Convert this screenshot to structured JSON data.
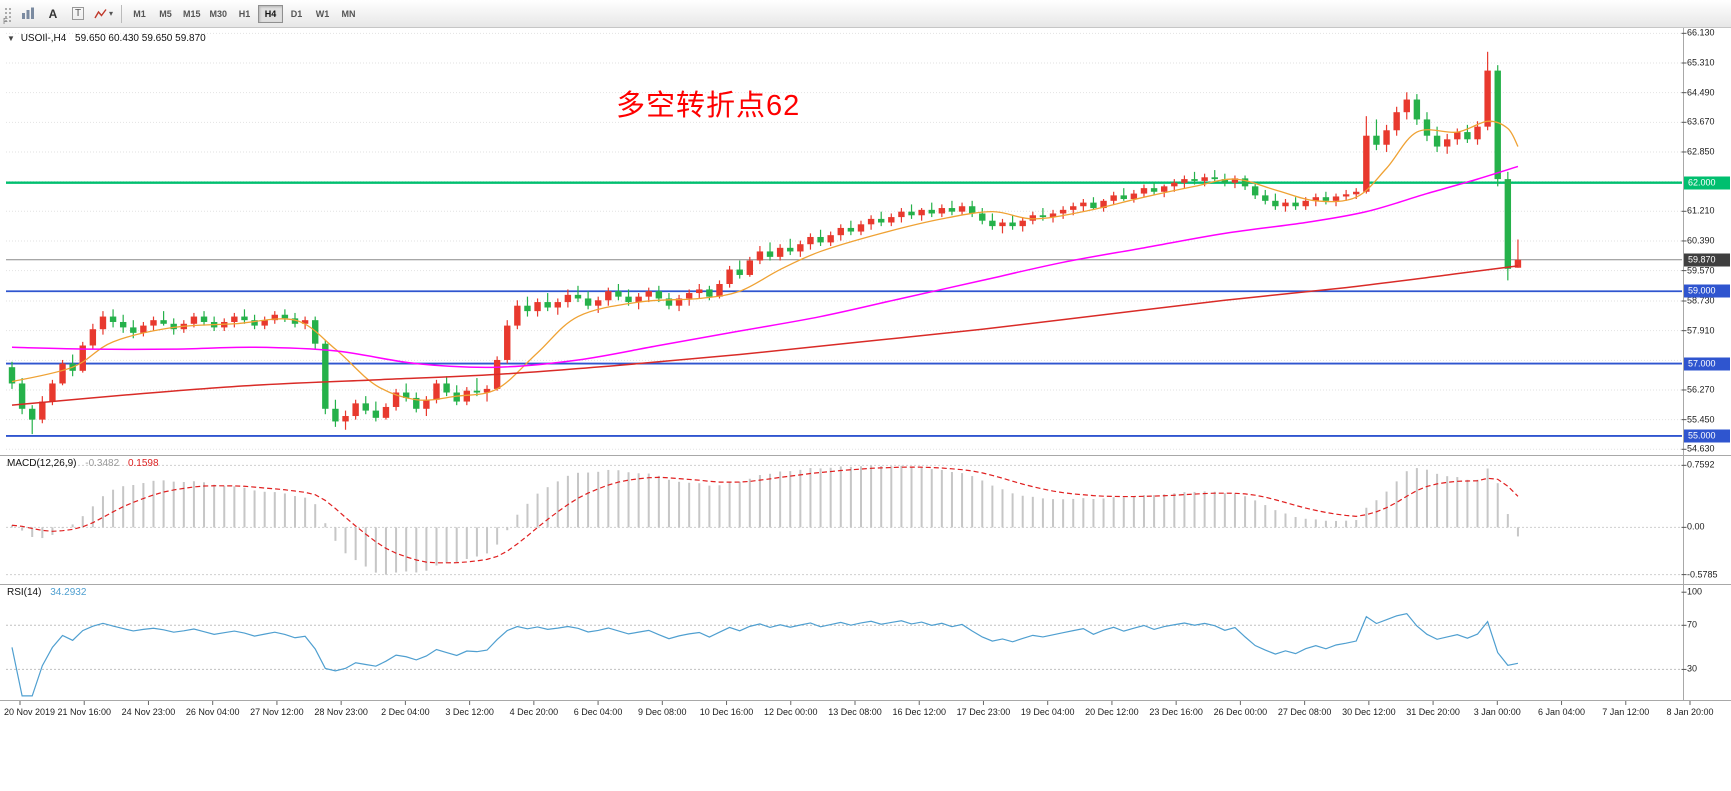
{
  "toolbar": {
    "timeframes": [
      "M1",
      "M5",
      "M15",
      "M30",
      "H1",
      "H4",
      "D1",
      "W1",
      "MN"
    ],
    "active_timeframe": "H4",
    "a_label": "A",
    "t_label": "T",
    "caret": "▾",
    "f_label": "F"
  },
  "chart": {
    "marker": "▼",
    "title_symbol": "USOIl-,H4",
    "title_ohlc": "59.650 60.430 59.650 59.870",
    "annotation": {
      "text": "多空转折点62",
      "color": "#fe0000"
    }
  },
  "chart_data": {
    "type": "candlestick",
    "symbol": "USOIl-",
    "timeframe": "H4",
    "last_ohlc": {
      "open": "59.650",
      "high": "60.430",
      "low": "59.650",
      "close": "59.870"
    },
    "colors": {
      "bull": "#e8392e",
      "bear": "#25b14a",
      "macd_hist": "#c6c6c6",
      "macd_signal": "#e02020",
      "rsi": "#4f9fd0",
      "grid": "#e2e2e2"
    },
    "price_axis": {
      "view_max": 66.25,
      "view_min": 54.5,
      "gridlines": [
        66.13,
        65.31,
        64.49,
        63.67,
        62.85,
        62.03,
        61.21,
        60.39,
        59.57,
        58.73,
        57.91,
        57.09,
        56.27,
        55.45,
        54.63
      ],
      "labels": [
        {
          "text": "66.130",
          "value": 66.13
        },
        {
          "text": "65.310",
          "value": 65.31
        },
        {
          "text": "64.490",
          "value": 64.49
        },
        {
          "text": "63.670",
          "value": 63.67
        },
        {
          "text": "62.850",
          "value": 62.85
        },
        {
          "text": "61.210",
          "value": 61.21
        },
        {
          "text": "60.390",
          "value": 60.39
        },
        {
          "text": "59.570",
          "value": 59.57
        },
        {
          "text": "58.730",
          "value": 58.73
        },
        {
          "text": "57.910",
          "value": 57.91
        },
        {
          "text": "56.270",
          "value": 56.27
        },
        {
          "text": "55.450",
          "value": 55.45
        },
        {
          "text": "54.630",
          "value": 54.63
        }
      ]
    },
    "current_price": {
      "text": "59.870",
      "value": 59.87,
      "badge_color": "#3f3f3f"
    },
    "hlines": [
      {
        "value": 62.0,
        "label": "62.000",
        "color": "#00bf6f",
        "width": 2.4
      },
      {
        "value": 59.0,
        "label": "59.000",
        "color": "#2f55cf",
        "width": 1.8
      },
      {
        "value": 57.0,
        "label": "57.000",
        "color": "#2f55cf",
        "width": 1.8
      },
      {
        "value": 55.0,
        "label": "55.000",
        "color": "#2f55cf",
        "width": 1.8
      }
    ],
    "candles": [
      [
        56.9,
        57.05,
        56.3,
        56.45
      ],
      [
        56.45,
        56.6,
        55.6,
        55.75
      ],
      [
        55.75,
        55.85,
        55.05,
        55.45
      ],
      [
        55.45,
        56.1,
        55.35,
        55.95
      ],
      [
        55.95,
        56.55,
        55.85,
        56.45
      ],
      [
        56.45,
        57.1,
        56.4,
        57.0
      ],
      [
        57.0,
        57.25,
        56.65,
        56.8
      ],
      [
        56.8,
        57.6,
        56.75,
        57.5
      ],
      [
        57.5,
        58.1,
        57.4,
        57.95
      ],
      [
        57.95,
        58.45,
        57.8,
        58.3
      ],
      [
        58.3,
        58.5,
        58.0,
        58.15
      ],
      [
        58.15,
        58.35,
        57.85,
        58.0
      ],
      [
        58.0,
        58.2,
        57.7,
        57.85
      ],
      [
        57.85,
        58.15,
        57.75,
        58.05
      ],
      [
        58.05,
        58.3,
        57.9,
        58.2
      ],
      [
        58.2,
        58.45,
        58.05,
        58.1
      ],
      [
        58.1,
        58.25,
        57.8,
        57.95
      ],
      [
        57.95,
        58.2,
        57.85,
        58.1
      ],
      [
        58.1,
        58.4,
        58.0,
        58.3
      ],
      [
        58.3,
        58.45,
        58.05,
        58.15
      ],
      [
        58.15,
        58.3,
        57.9,
        58.0
      ],
      [
        58.0,
        58.25,
        57.9,
        58.15
      ],
      [
        58.15,
        58.4,
        58.0,
        58.3
      ],
      [
        58.3,
        58.5,
        58.1,
        58.2
      ],
      [
        58.2,
        58.35,
        57.95,
        58.05
      ],
      [
        58.05,
        58.3,
        57.95,
        58.2
      ],
      [
        58.2,
        58.45,
        58.1,
        58.35
      ],
      [
        58.35,
        58.5,
        58.15,
        58.25
      ],
      [
        58.25,
        58.4,
        58.0,
        58.1
      ],
      [
        58.1,
        58.3,
        57.95,
        58.2
      ],
      [
        58.2,
        58.3,
        57.4,
        57.55
      ],
      [
        57.55,
        57.65,
        55.6,
        55.75
      ],
      [
        55.75,
        56.0,
        55.25,
        55.4
      ],
      [
        55.4,
        55.7,
        55.17,
        55.55
      ],
      [
        55.55,
        56.0,
        55.45,
        55.9
      ],
      [
        55.9,
        56.1,
        55.6,
        55.7
      ],
      [
        55.7,
        55.95,
        55.4,
        55.5
      ],
      [
        55.5,
        55.9,
        55.45,
        55.8
      ],
      [
        55.8,
        56.3,
        55.7,
        56.2
      ],
      [
        56.2,
        56.45,
        55.95,
        56.05
      ],
      [
        56.05,
        56.2,
        55.65,
        55.75
      ],
      [
        55.75,
        56.1,
        55.55,
        56.0
      ],
      [
        56.0,
        56.55,
        55.9,
        56.45
      ],
      [
        56.45,
        56.65,
        56.1,
        56.2
      ],
      [
        56.2,
        56.4,
        55.85,
        55.95
      ],
      [
        55.95,
        56.35,
        55.85,
        56.25
      ],
      [
        56.25,
        56.6,
        56.1,
        56.2
      ],
      [
        56.2,
        56.4,
        55.95,
        56.3
      ],
      [
        56.3,
        57.2,
        56.25,
        57.1
      ],
      [
        57.1,
        58.2,
        57.0,
        58.05
      ],
      [
        58.05,
        58.75,
        57.95,
        58.6
      ],
      [
        58.6,
        58.85,
        58.3,
        58.45
      ],
      [
        58.45,
        58.8,
        58.3,
        58.7
      ],
      [
        58.7,
        58.95,
        58.45,
        58.55
      ],
      [
        58.55,
        58.8,
        58.35,
        58.7
      ],
      [
        58.7,
        59.05,
        58.55,
        58.9
      ],
      [
        58.9,
        59.15,
        58.7,
        58.8
      ],
      [
        58.8,
        59.0,
        58.5,
        58.6
      ],
      [
        58.6,
        58.85,
        58.4,
        58.75
      ],
      [
        58.75,
        59.1,
        58.6,
        59.0
      ],
      [
        59.0,
        59.2,
        58.75,
        58.85
      ],
      [
        58.85,
        59.05,
        58.6,
        58.7
      ],
      [
        58.7,
        58.95,
        58.5,
        58.85
      ],
      [
        58.85,
        59.1,
        58.7,
        59.0
      ],
      [
        59.0,
        59.15,
        58.7,
        58.8
      ],
      [
        58.8,
        58.95,
        58.5,
        58.6
      ],
      [
        58.6,
        58.9,
        58.45,
        58.8
      ],
      [
        58.8,
        59.05,
        58.6,
        58.95
      ],
      [
        58.95,
        59.2,
        58.8,
        59.05
      ],
      [
        59.05,
        59.15,
        58.75,
        58.85
      ],
      [
        58.85,
        59.3,
        58.8,
        59.2
      ],
      [
        59.2,
        59.7,
        59.1,
        59.6
      ],
      [
        59.6,
        59.85,
        59.35,
        59.45
      ],
      [
        59.45,
        59.95,
        59.4,
        59.85
      ],
      [
        59.85,
        60.25,
        59.75,
        60.1
      ],
      [
        60.1,
        60.35,
        59.85,
        59.95
      ],
      [
        59.95,
        60.3,
        59.85,
        60.2
      ],
      [
        60.2,
        60.45,
        60.0,
        60.1
      ],
      [
        60.1,
        60.4,
        59.95,
        60.3
      ],
      [
        60.3,
        60.6,
        60.15,
        60.5
      ],
      [
        60.5,
        60.7,
        60.25,
        60.35
      ],
      [
        60.35,
        60.65,
        60.25,
        60.55
      ],
      [
        60.55,
        60.85,
        60.4,
        60.75
      ],
      [
        60.75,
        60.95,
        60.55,
        60.65
      ],
      [
        60.65,
        60.95,
        60.55,
        60.85
      ],
      [
        60.85,
        61.1,
        60.7,
        61.0
      ],
      [
        61.0,
        61.2,
        60.8,
        60.9
      ],
      [
        60.9,
        61.15,
        60.8,
        61.05
      ],
      [
        61.05,
        61.3,
        60.9,
        61.2
      ],
      [
        61.2,
        61.4,
        61.0,
        61.1
      ],
      [
        61.1,
        61.3,
        60.95,
        61.25
      ],
      [
        61.25,
        61.45,
        61.05,
        61.15
      ],
      [
        61.15,
        61.4,
        61.05,
        61.3
      ],
      [
        61.3,
        61.5,
        61.1,
        61.2
      ],
      [
        61.2,
        61.45,
        61.1,
        61.35
      ],
      [
        61.35,
        61.5,
        61.05,
        61.15
      ],
      [
        61.15,
        61.3,
        60.85,
        60.95
      ],
      [
        60.95,
        61.15,
        60.7,
        60.8
      ],
      [
        60.8,
        61.0,
        60.6,
        60.9
      ],
      [
        60.9,
        61.1,
        60.7,
        60.8
      ],
      [
        60.8,
        61.05,
        60.65,
        60.95
      ],
      [
        60.95,
        61.2,
        60.85,
        61.1
      ],
      [
        61.1,
        61.3,
        60.95,
        61.05
      ],
      [
        61.05,
        61.25,
        60.9,
        61.15
      ],
      [
        61.15,
        61.35,
        61.0,
        61.25
      ],
      [
        61.25,
        61.45,
        61.1,
        61.35
      ],
      [
        61.35,
        61.55,
        61.2,
        61.45
      ],
      [
        61.45,
        61.6,
        61.25,
        61.3
      ],
      [
        61.3,
        61.55,
        61.2,
        61.5
      ],
      [
        61.5,
        61.75,
        61.4,
        61.65
      ],
      [
        61.65,
        61.85,
        61.5,
        61.55
      ],
      [
        61.55,
        61.8,
        61.45,
        61.7
      ],
      [
        61.7,
        61.95,
        61.6,
        61.85
      ],
      [
        61.85,
        62.0,
        61.65,
        61.75
      ],
      [
        61.75,
        61.95,
        61.6,
        61.9
      ],
      [
        61.9,
        62.1,
        61.75,
        62.0
      ],
      [
        62.0,
        62.2,
        61.85,
        62.1
      ],
      [
        62.1,
        62.3,
        61.95,
        62.05
      ],
      [
        62.05,
        62.25,
        61.9,
        62.15
      ],
      [
        62.15,
        62.35,
        62.0,
        62.1
      ],
      [
        62.1,
        62.25,
        61.9,
        62.0
      ],
      [
        62.0,
        62.2,
        61.85,
        62.12
      ],
      [
        62.12,
        62.2,
        61.8,
        61.9
      ],
      [
        61.9,
        62.0,
        61.55,
        61.65
      ],
      [
        61.65,
        61.8,
        61.4,
        61.5
      ],
      [
        61.5,
        61.7,
        61.25,
        61.35
      ],
      [
        61.35,
        61.55,
        61.2,
        61.45
      ],
      [
        61.45,
        61.6,
        61.25,
        61.35
      ],
      [
        61.35,
        61.6,
        61.25,
        61.5
      ],
      [
        61.5,
        61.7,
        61.35,
        61.6
      ],
      [
        61.6,
        61.75,
        61.4,
        61.5
      ],
      [
        61.5,
        61.7,
        61.35,
        61.62
      ],
      [
        61.62,
        61.8,
        61.5,
        61.68
      ],
      [
        61.68,
        61.85,
        61.55,
        61.75
      ],
      [
        61.75,
        63.84,
        61.7,
        63.3
      ],
      [
        63.3,
        63.75,
        62.9,
        63.05
      ],
      [
        63.05,
        63.6,
        62.85,
        63.45
      ],
      [
        63.45,
        64.1,
        63.3,
        63.95
      ],
      [
        63.95,
        64.5,
        63.75,
        64.3
      ],
      [
        64.3,
        64.45,
        63.6,
        63.75
      ],
      [
        63.75,
        63.95,
        63.15,
        63.3
      ],
      [
        63.3,
        63.55,
        62.85,
        63.0
      ],
      [
        63.0,
        63.35,
        62.8,
        63.2
      ],
      [
        63.2,
        63.5,
        63.05,
        63.4
      ],
      [
        63.4,
        63.6,
        63.1,
        63.2
      ],
      [
        63.2,
        63.7,
        63.05,
        63.55
      ],
      [
        63.55,
        65.62,
        63.45,
        65.1
      ],
      [
        65.1,
        65.25,
        61.9,
        62.1
      ],
      [
        62.1,
        62.3,
        59.3,
        59.62
      ],
      [
        59.65,
        60.43,
        59.65,
        59.87
      ]
    ],
    "ma_lines": [
      {
        "name": "ma-fast-line",
        "color": "#efa234",
        "width": 1.3,
        "points": [
          [
            0,
            56.5
          ],
          [
            6,
            56.9
          ],
          [
            10,
            57.6
          ],
          [
            16,
            58.0
          ],
          [
            22,
            58.1
          ],
          [
            28,
            58.2
          ],
          [
            32,
            57.4
          ],
          [
            36,
            56.4
          ],
          [
            40,
            56.0
          ],
          [
            44,
            56.1
          ],
          [
            48,
            56.3
          ],
          [
            52,
            57.3
          ],
          [
            56,
            58.3
          ],
          [
            62,
            58.7
          ],
          [
            68,
            58.8
          ],
          [
            72,
            59.0
          ],
          [
            76,
            59.6
          ],
          [
            80,
            60.1
          ],
          [
            86,
            60.6
          ],
          [
            92,
            61.0
          ],
          [
            97,
            61.2
          ],
          [
            101,
            61.0
          ],
          [
            106,
            61.2
          ],
          [
            112,
            61.6
          ],
          [
            117,
            61.9
          ],
          [
            121,
            62.1
          ],
          [
            125,
            61.8
          ],
          [
            129,
            61.5
          ],
          [
            133,
            61.6
          ],
          [
            136,
            62.4
          ],
          [
            139,
            63.4
          ],
          [
            143,
            63.4
          ],
          [
            146,
            63.7
          ],
          [
            148,
            63.5
          ],
          [
            149,
            63.0
          ]
        ]
      },
      {
        "name": "ma-mid-line",
        "color": "#ff00ff",
        "width": 1.5,
        "points": [
          [
            0,
            57.45
          ],
          [
            8,
            57.4
          ],
          [
            16,
            57.4
          ],
          [
            24,
            57.45
          ],
          [
            32,
            57.35
          ],
          [
            40,
            57.0
          ],
          [
            48,
            56.9
          ],
          [
            56,
            57.1
          ],
          [
            64,
            57.5
          ],
          [
            72,
            57.9
          ],
          [
            80,
            58.3
          ],
          [
            88,
            58.8
          ],
          [
            96,
            59.3
          ],
          [
            104,
            59.8
          ],
          [
            112,
            60.2
          ],
          [
            120,
            60.6
          ],
          [
            128,
            60.9
          ],
          [
            134,
            61.2
          ],
          [
            140,
            61.7
          ],
          [
            145,
            62.1
          ],
          [
            149,
            62.45
          ]
        ]
      },
      {
        "name": "ma-slow-line",
        "color": "#d92b27",
        "width": 1.5,
        "points": [
          [
            0,
            55.85
          ],
          [
            12,
            56.15
          ],
          [
            24,
            56.4
          ],
          [
            36,
            56.55
          ],
          [
            48,
            56.7
          ],
          [
            60,
            56.95
          ],
          [
            72,
            57.25
          ],
          [
            84,
            57.6
          ],
          [
            96,
            57.95
          ],
          [
            108,
            58.35
          ],
          [
            120,
            58.75
          ],
          [
            132,
            59.1
          ],
          [
            142,
            59.45
          ],
          [
            149,
            59.7
          ]
        ]
      }
    ],
    "macd": {
      "name": "MACD(12,26,9)",
      "value_main": "-0.3482",
      "value_signal": "0.1598",
      "fast": 12,
      "slow": 26,
      "signal_period": 9,
      "view_max": 0.8,
      "view_min": -0.62,
      "axis_labels": [
        {
          "text": "0.7592",
          "value": 0.7592
        },
        {
          "text": "0.00",
          "value": 0
        },
        {
          "text": "-0.5785",
          "value": -0.5785
        }
      ]
    },
    "rsi": {
      "name": "RSI(14)",
      "value": "34.2932",
      "period": 14,
      "levels": [
        70,
        30
      ],
      "view_max": 102,
      "view_min": 5,
      "axis_labels": [
        {
          "text": "100",
          "value": 100
        },
        {
          "text": "70",
          "value": 70
        },
        {
          "text": "30",
          "value": 30
        }
      ]
    },
    "time_axis": [
      "20 Nov 2019",
      "21 Nov 16:00",
      "24 Nov 23:00",
      "26 Nov 04:00",
      "27 Nov 12:00",
      "28 Nov 23:00",
      "2 Dec 04:00",
      "3 Dec 12:00",
      "4 Dec 20:00",
      "6 Dec 04:00",
      "9 Dec 08:00",
      "10 Dec 16:00",
      "12 Dec 00:00",
      "13 Dec 08:00",
      "16 Dec 12:00",
      "17 Dec 23:00",
      "19 Dec 04:00",
      "20 Dec 12:00",
      "23 Dec 16:00",
      "26 Dec 00:00",
      "27 Dec 08:00",
      "30 Dec 12:00",
      "31 Dec 20:00",
      "3 Jan 00:00",
      "6 Jan 04:00",
      "7 Jan 12:00",
      "8 Jan 20:00"
    ]
  }
}
